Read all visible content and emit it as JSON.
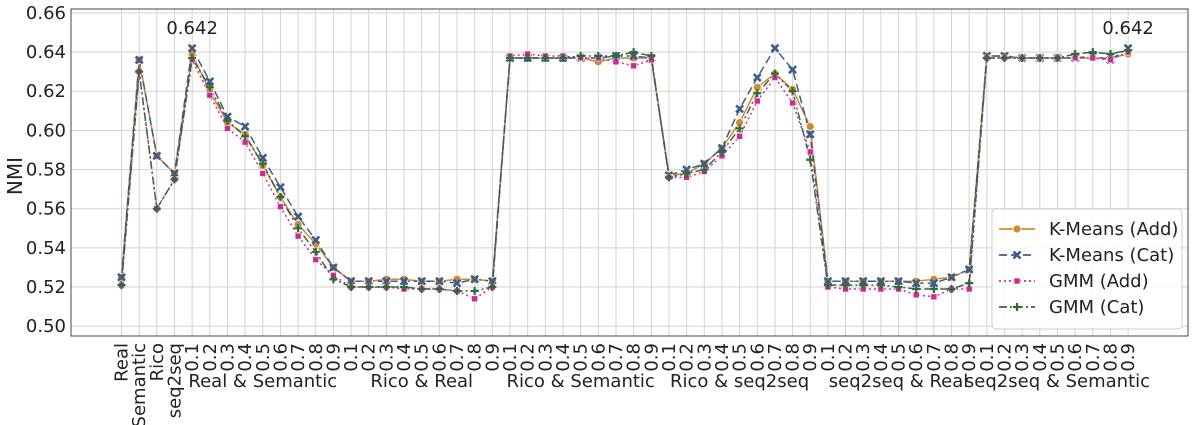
{
  "chart_data": {
    "type": "line",
    "ylabel": "NMI",
    "ylim": [
      0.495,
      0.662
    ],
    "yticks": [
      0.5,
      0.52,
      0.54,
      0.56,
      0.58,
      0.6,
      0.62,
      0.64,
      0.66
    ],
    "ytick_labels": [
      "0.50",
      "0.52",
      "0.54",
      "0.56",
      "0.58",
      "0.60",
      "0.62",
      "0.64",
      "0.66"
    ],
    "grid": true,
    "legend_position": "lower right",
    "x_tick_labels": [
      "Real",
      "Semantic",
      "Rico",
      "seq2seq",
      "0.1",
      "0.2",
      "0.3",
      "0.4",
      "0.5",
      "0.6",
      "0.7",
      "0.8",
      "0.9",
      "0.1",
      "0.2",
      "0.3",
      "0.4",
      "0.5",
      "0.6",
      "0.7",
      "0.8",
      "0.9",
      "0.1",
      "0.2",
      "0.3",
      "0.4",
      "0.5",
      "0.6",
      "0.7",
      "0.8",
      "0.9",
      "0.1",
      "0.2",
      "0.3",
      "0.4",
      "0.5",
      "0.6",
      "0.7",
      "0.8",
      "0.9",
      "0.1",
      "0.2",
      "0.3",
      "0.4",
      "0.5",
      "0.6",
      "0.7",
      "0.8",
      "0.9",
      "0.1",
      "0.2",
      "0.3",
      "0.4",
      "0.5",
      "0.6",
      "0.7",
      "0.8",
      "0.9"
    ],
    "group_labels": [
      "Real & Semantic",
      "Rico & Real",
      "Rico & Semantic",
      "Rico & seq2seq",
      "seq2seq & Real",
      "seq2seq & Semantic"
    ],
    "annotations": [
      {
        "text": "0.642",
        "x_index": 4,
        "y": 0.642
      },
      {
        "text": "0.642",
        "x_index": 57,
        "y": 0.642
      }
    ],
    "series": [
      {
        "name": "K-Means (Add)",
        "color": "#d4892f",
        "dash": "solid",
        "marker": "circle",
        "values": [
          0.525,
          0.636,
          0.587,
          0.578,
          0.639,
          0.62,
          0.604,
          0.598,
          0.582,
          0.566,
          0.552,
          0.542,
          0.53,
          0.523,
          0.523,
          0.524,
          0.524,
          0.523,
          0.523,
          0.524,
          0.524,
          0.523,
          0.637,
          0.637,
          0.637,
          0.637,
          0.637,
          0.635,
          0.637,
          0.637,
          0.637,
          0.577,
          0.578,
          0.583,
          0.591,
          0.604,
          0.622,
          0.629,
          0.621,
          0.602,
          0.523,
          0.523,
          0.523,
          0.523,
          0.523,
          0.523,
          0.524,
          0.525,
          0.529,
          0.638,
          0.638,
          0.637,
          0.637,
          0.637,
          0.637,
          0.637,
          0.637,
          0.639
        ]
      },
      {
        "name": "K-Means (Cat)",
        "color": "#3d5c8c",
        "dash": "dashed",
        "marker": "x",
        "values": [
          0.525,
          0.636,
          0.587,
          0.578,
          0.642,
          0.625,
          0.607,
          0.602,
          0.586,
          0.571,
          0.556,
          0.544,
          0.53,
          0.523,
          0.523,
          0.523,
          0.523,
          0.523,
          0.523,
          0.522,
          0.524,
          0.523,
          0.637,
          0.637,
          0.637,
          0.637,
          0.637,
          0.637,
          0.638,
          0.638,
          0.637,
          0.577,
          0.58,
          0.583,
          0.591,
          0.611,
          0.627,
          0.642,
          0.631,
          0.598,
          0.523,
          0.523,
          0.523,
          0.523,
          0.523,
          0.522,
          0.522,
          0.525,
          0.529,
          0.638,
          0.638,
          0.637,
          0.637,
          0.637,
          0.637,
          0.638,
          0.636,
          0.642
        ]
      },
      {
        "name": "GMM (Add)",
        "color": "#d6278f",
        "dash": "dotted",
        "marker": "square",
        "values": [
          0.521,
          0.63,
          0.56,
          0.575,
          0.636,
          0.618,
          0.601,
          0.594,
          0.578,
          0.561,
          0.546,
          0.534,
          0.526,
          0.52,
          0.52,
          0.52,
          0.519,
          0.519,
          0.519,
          0.518,
          0.514,
          0.52,
          0.638,
          0.639,
          0.638,
          0.638,
          0.637,
          0.637,
          0.635,
          0.633,
          0.636,
          0.576,
          0.576,
          0.579,
          0.587,
          0.597,
          0.615,
          0.627,
          0.614,
          0.589,
          0.52,
          0.519,
          0.519,
          0.519,
          0.519,
          0.516,
          0.515,
          0.519,
          0.519,
          0.637,
          0.637,
          0.637,
          0.637,
          0.637,
          0.637,
          0.637,
          0.636,
          0.64
        ]
      },
      {
        "name": "GMM (Cat)",
        "color": "#2f6b3a",
        "dash": "dashdot",
        "marker": "plus",
        "values": [
          0.521,
          0.63,
          0.56,
          0.575,
          0.637,
          0.622,
          0.605,
          0.597,
          0.583,
          0.566,
          0.55,
          0.538,
          0.524,
          0.52,
          0.52,
          0.52,
          0.52,
          0.519,
          0.519,
          0.518,
          0.518,
          0.52,
          0.637,
          0.637,
          0.637,
          0.637,
          0.638,
          0.638,
          0.638,
          0.64,
          0.638,
          0.576,
          0.578,
          0.58,
          0.589,
          0.601,
          0.619,
          0.629,
          0.62,
          0.585,
          0.521,
          0.521,
          0.521,
          0.521,
          0.52,
          0.519,
          0.519,
          0.519,
          0.522,
          0.637,
          0.637,
          0.637,
          0.637,
          0.637,
          0.639,
          0.64,
          0.639,
          0.641
        ]
      }
    ]
  }
}
